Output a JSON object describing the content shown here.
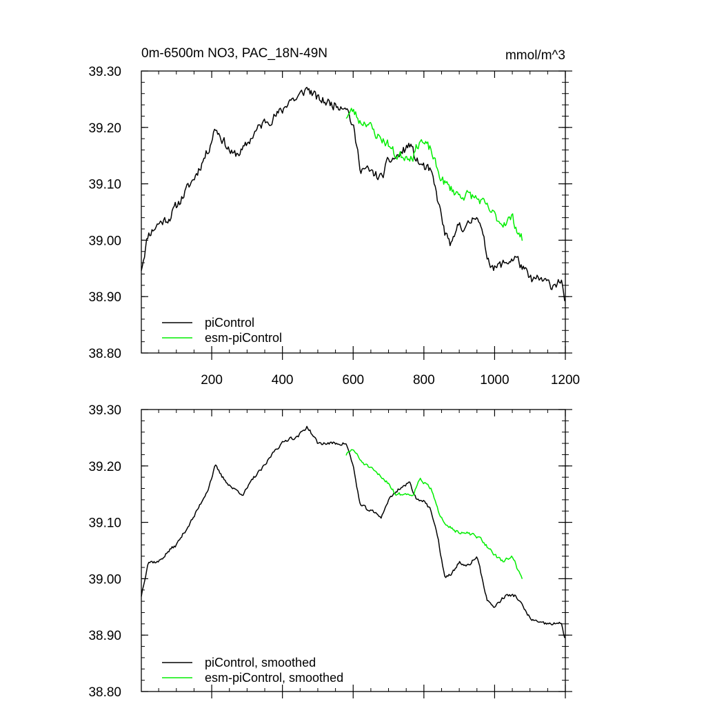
{
  "header": {
    "title": "0m-6500m NO3, PAC_18N-49N",
    "units": "mmol/m^3"
  },
  "colors": {
    "piControl": "#000000",
    "esm_piControl": "#00ee00",
    "axis": "#000000",
    "background": "#ffffff"
  },
  "chart_data": [
    {
      "type": "line",
      "panel": "top",
      "title": "0m-6500m NO3, PAC_18N-49N",
      "units": "mmol/m^3",
      "xlabel": "",
      "ylabel": "",
      "xlim": [
        1,
        1200
      ],
      "ylim": [
        38.8,
        39.3
      ],
      "xticks": [
        200,
        400,
        600,
        800,
        1000,
        1200
      ],
      "xtick_labels": [
        "200",
        "400",
        "600",
        "800",
        "1000",
        "1200"
      ],
      "yticks": [
        38.8,
        38.9,
        39.0,
        39.1,
        39.2,
        39.3
      ],
      "ytick_labels": [
        "38.80",
        "38.90",
        "39.00",
        "39.10",
        "39.20",
        "39.30"
      ],
      "grid": false,
      "legend": [
        "piControl",
        "esm-piControl"
      ],
      "legend_position": "bottom-left",
      "series": [
        {
          "name": "piControl",
          "x_start": 1,
          "x_end": 1200,
          "noise": 0.014,
          "seed": 11,
          "anchors": [
            [
              1,
              38.95
            ],
            [
              20,
              39.01
            ],
            [
              50,
              39.03
            ],
            [
              80,
              39.04
            ],
            [
              100,
              39.06
            ],
            [
              150,
              39.11
            ],
            [
              190,
              39.16
            ],
            [
              210,
              39.2
            ],
            [
              230,
              39.18
            ],
            [
              260,
              39.15
            ],
            [
              290,
              39.16
            ],
            [
              320,
              39.19
            ],
            [
              350,
              39.21
            ],
            [
              380,
              39.22
            ],
            [
              400,
              39.23
            ],
            [
              420,
              39.25
            ],
            [
              440,
              39.25
            ],
            [
              470,
              39.27
            ],
            [
              500,
              39.25
            ],
            [
              550,
              39.24
            ],
            [
              580,
              39.24
            ],
            [
              600,
              39.2
            ],
            [
              620,
              39.13
            ],
            [
              650,
              39.12
            ],
            [
              680,
              39.11
            ],
            [
              700,
              39.14
            ],
            [
              730,
              39.15
            ],
            [
              760,
              39.17
            ],
            [
              780,
              39.14
            ],
            [
              800,
              39.13
            ],
            [
              820,
              39.12
            ],
            [
              840,
              39.07
            ],
            [
              860,
              39.01
            ],
            [
              880,
              38.99
            ],
            [
              900,
              39.03
            ],
            [
              920,
              39.02
            ],
            [
              950,
              39.05
            ],
            [
              980,
              38.97
            ],
            [
              1000,
              38.95
            ],
            [
              1030,
              38.96
            ],
            [
              1060,
              38.97
            ],
            [
              1080,
              38.95
            ],
            [
              1100,
              38.93
            ],
            [
              1130,
              38.93
            ],
            [
              1160,
              38.92
            ],
            [
              1190,
              38.93
            ],
            [
              1200,
              38.87
            ]
          ]
        },
        {
          "name": "esm-piControl",
          "x_start": 580,
          "x_end": 1080,
          "noise": 0.014,
          "seed": 23,
          "anchors": [
            [
              580,
              39.22
            ],
            [
              600,
              39.23
            ],
            [
              620,
              39.21
            ],
            [
              640,
              39.21
            ],
            [
              660,
              39.19
            ],
            [
              680,
              39.18
            ],
            [
              700,
              39.17
            ],
            [
              720,
              39.15
            ],
            [
              750,
              39.15
            ],
            [
              770,
              39.15
            ],
            [
              790,
              39.18
            ],
            [
              800,
              39.17
            ],
            [
              820,
              39.16
            ],
            [
              840,
              39.12
            ],
            [
              860,
              39.1
            ],
            [
              880,
              39.09
            ],
            [
              900,
              39.08
            ],
            [
              930,
              39.08
            ],
            [
              960,
              39.07
            ],
            [
              990,
              39.05
            ],
            [
              1020,
              39.03
            ],
            [
              1050,
              39.04
            ],
            [
              1070,
              39.01
            ],
            [
              1080,
              39.0
            ]
          ]
        }
      ]
    },
    {
      "type": "line",
      "panel": "bottom",
      "xlabel": "",
      "ylabel": "",
      "xlim": [
        1,
        1200
      ],
      "ylim": [
        38.8,
        39.3
      ],
      "xticks": [
        200,
        400,
        600,
        800,
        1000,
        1200
      ],
      "yticks": [
        38.8,
        38.9,
        39.0,
        39.1,
        39.2,
        39.3
      ],
      "ytick_labels": [
        "38.80",
        "38.90",
        "39.00",
        "39.10",
        "39.20",
        "39.30"
      ],
      "grid": false,
      "legend": [
        "piControl, smoothed",
        "esm-piControl, smoothed"
      ],
      "legend_position": "bottom-left",
      "series": [
        {
          "name": "piControl, smoothed",
          "x_start": 1,
          "x_end": 1200,
          "noise": 0.005,
          "seed": 37,
          "anchors": [
            [
              1,
              38.97
            ],
            [
              20,
              39.03
            ],
            [
              50,
              39.03
            ],
            [
              80,
              39.05
            ],
            [
              100,
              39.06
            ],
            [
              150,
              39.11
            ],
            [
              190,
              39.16
            ],
            [
              210,
              39.2
            ],
            [
              230,
              39.18
            ],
            [
              260,
              39.16
            ],
            [
              290,
              39.15
            ],
            [
              320,
              39.18
            ],
            [
              350,
              39.2
            ],
            [
              380,
              39.23
            ],
            [
              400,
              39.24
            ],
            [
              420,
              39.25
            ],
            [
              440,
              39.25
            ],
            [
              470,
              39.27
            ],
            [
              500,
              39.24
            ],
            [
              550,
              39.24
            ],
            [
              580,
              39.24
            ],
            [
              600,
              39.2
            ],
            [
              620,
              39.13
            ],
            [
              650,
              39.12
            ],
            [
              680,
              39.11
            ],
            [
              700,
              39.14
            ],
            [
              730,
              39.16
            ],
            [
              760,
              39.17
            ],
            [
              780,
              39.14
            ],
            [
              800,
              39.14
            ],
            [
              820,
              39.12
            ],
            [
              840,
              39.07
            ],
            [
              860,
              39.0
            ],
            [
              880,
              39.01
            ],
            [
              900,
              39.03
            ],
            [
              920,
              39.02
            ],
            [
              950,
              39.04
            ],
            [
              980,
              38.96
            ],
            [
              1000,
              38.95
            ],
            [
              1030,
              38.97
            ],
            [
              1060,
              38.97
            ],
            [
              1080,
              38.95
            ],
            [
              1100,
              38.93
            ],
            [
              1130,
              38.92
            ],
            [
              1160,
              38.92
            ],
            [
              1190,
              38.92
            ],
            [
              1200,
              38.89
            ]
          ]
        },
        {
          "name": "esm-piControl, smoothed",
          "x_start": 580,
          "x_end": 1080,
          "noise": 0.005,
          "seed": 51,
          "anchors": [
            [
              580,
              39.22
            ],
            [
              600,
              39.23
            ],
            [
              620,
              39.21
            ],
            [
              640,
              39.2
            ],
            [
              660,
              39.19
            ],
            [
              680,
              39.18
            ],
            [
              700,
              39.17
            ],
            [
              720,
              39.15
            ],
            [
              750,
              39.15
            ],
            [
              770,
              39.15
            ],
            [
              790,
              39.18
            ],
            [
              800,
              39.17
            ],
            [
              820,
              39.16
            ],
            [
              840,
              39.12
            ],
            [
              860,
              39.1
            ],
            [
              880,
              39.09
            ],
            [
              900,
              39.08
            ],
            [
              930,
              39.08
            ],
            [
              960,
              39.07
            ],
            [
              990,
              39.05
            ],
            [
              1020,
              39.03
            ],
            [
              1050,
              39.04
            ],
            [
              1070,
              39.01
            ],
            [
              1080,
              39.0
            ]
          ]
        }
      ]
    }
  ]
}
